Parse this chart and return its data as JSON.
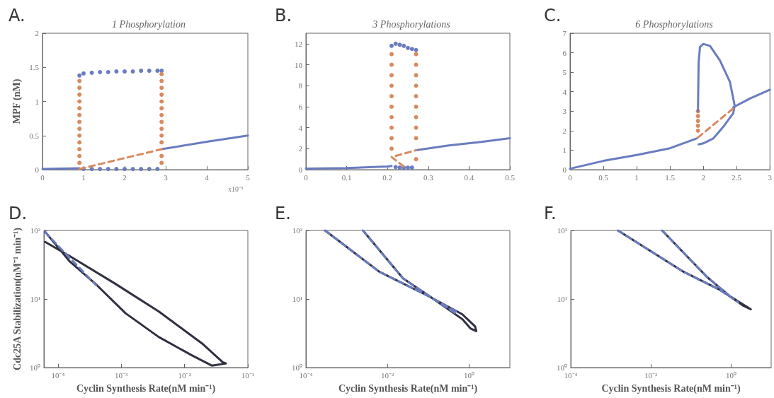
{
  "chart_data": [
    {
      "type": "line",
      "title": "1 Phosphorylation",
      "ylabel": "MPF (nM)",
      "annotations": [
        "A.",
        "x10⁻³"
      ],
      "xlim": [
        0,
        5
      ],
      "xticks": [
        0,
        1,
        2,
        3,
        4,
        5
      ],
      "ylim": [
        0,
        2
      ],
      "yticks": [
        0,
        0.5,
        1,
        1.5,
        2
      ],
      "series": [
        {
          "color": "#6a7cc0",
          "line_style": "solid",
          "x": [
            0,
            0.9,
            null,
            2.9,
            4,
            5
          ],
          "values": [
            0.01,
            0.02,
            null,
            0.3,
            0.41,
            0.5
          ]
        },
        {
          "color": "#d9895f",
          "line_style": "dashed",
          "x": [
            0.9,
            2.9
          ],
          "values": [
            0.01,
            0.3
          ]
        },
        {
          "type": "scatter",
          "marker": "circle",
          "color": "#6a7cc0",
          "x": [
            0.9,
            1.0,
            1.2,
            1.4,
            1.6,
            1.8,
            2.0,
            2.2,
            2.4,
            2.6,
            2.8,
            2.9,
            1.0,
            1.2,
            1.4,
            1.6,
            1.8,
            2.0,
            2.2,
            2.4,
            2.6,
            2.8
          ],
          "values": [
            1.38,
            1.41,
            1.42,
            1.43,
            1.43,
            1.44,
            1.44,
            1.44,
            1.45,
            1.45,
            1.45,
            1.45,
            0.01,
            0.01,
            0.01,
            0.01,
            0.01,
            0.01,
            0.01,
            0.01,
            0.01,
            0.01
          ]
        },
        {
          "type": "scatter",
          "marker": "circle",
          "color": "#d9895f",
          "x": [
            0.9,
            0.9,
            0.9,
            0.9,
            0.9,
            0.9,
            0.9,
            0.9,
            0.9,
            0.9,
            0.9,
            0.9,
            0.9,
            2.9,
            2.9,
            2.9,
            2.9,
            2.9,
            2.9,
            2.9,
            2.9,
            2.9,
            2.9,
            2.9,
            2.9,
            2.9
          ],
          "values": [
            0.1,
            0.2,
            0.3,
            0.4,
            0.5,
            0.6,
            0.7,
            0.8,
            0.9,
            1.0,
            1.1,
            1.2,
            1.3,
            0.1,
            0.2,
            0.4,
            0.5,
            0.6,
            0.7,
            0.8,
            0.9,
            1.0,
            1.1,
            1.2,
            1.3,
            1.4
          ]
        }
      ]
    },
    {
      "type": "line",
      "title": "3 Phosphorylations",
      "annotations": [
        "B."
      ],
      "xlim": [
        0,
        0.5
      ],
      "xticks": [
        0,
        0.1,
        0.2,
        0.3,
        0.4,
        0.5
      ],
      "ylim": [
        0,
        13
      ],
      "yticks": [
        0,
        2,
        4,
        6,
        8,
        10,
        12
      ],
      "series": [
        {
          "color": "#6a7cc0",
          "line_style": "solid",
          "x": [
            0,
            0.1,
            0.2,
            0.21,
            null,
            0.27,
            0.35,
            0.43,
            0.5
          ],
          "values": [
            0.1,
            0.15,
            0.3,
            0.35,
            null,
            1.85,
            2.3,
            2.65,
            3.0
          ]
        },
        {
          "color": "#d9895f",
          "line_style": "dashed",
          "x": [
            0.24,
            0.21,
            0.27
          ],
          "values": [
            0.3,
            1.2,
            1.85
          ]
        },
        {
          "type": "scatter",
          "marker": "circle",
          "color": "#6a7cc0",
          "x": [
            0.21,
            0.22,
            0.23,
            0.24,
            0.25,
            0.26,
            0.27,
            0.22,
            0.23,
            0.24,
            0.25,
            0.26
          ],
          "values": [
            11.8,
            12.0,
            11.9,
            11.8,
            11.6,
            11.5,
            11.4,
            0.25,
            0.2,
            0.2,
            0.2,
            0.2
          ]
        },
        {
          "type": "scatter",
          "marker": "circle",
          "color": "#d9895f",
          "x": [
            0.21,
            0.21,
            0.21,
            0.21,
            0.21,
            0.21,
            0.21,
            0.21,
            0.21,
            0.21,
            0.27,
            0.27,
            0.27,
            0.27,
            0.27,
            0.27,
            0.27,
            0.27,
            0.27,
            0.27
          ],
          "values": [
            2,
            3,
            4,
            5,
            6,
            7,
            8,
            9,
            10,
            11,
            1,
            3,
            4,
            5,
            6,
            7,
            8,
            9,
            10,
            11
          ]
        }
      ]
    },
    {
      "type": "line",
      "title": "6 Phosphorylations",
      "annotations": [
        "C."
      ],
      "xlim": [
        0,
        3
      ],
      "xticks": [
        0,
        0.5,
        1,
        1.5,
        2,
        2.5,
        3
      ],
      "ylim": [
        0,
        7
      ],
      "yticks": [
        0,
        1,
        2,
        3,
        4,
        5,
        6,
        7
      ],
      "series": [
        {
          "color": "#6a7cc0",
          "line_style": "solid",
          "x": [
            0,
            0.5,
            1,
            1.5,
            1.9,
            null,
            2.45,
            2.7,
            3
          ],
          "values": [
            0.05,
            0.45,
            0.75,
            1.1,
            1.6,
            null,
            3.2,
            3.65,
            4.1
          ]
        },
        {
          "color": "#6a7cc0",
          "line_style": "solid",
          "x": [
            1.92,
            1.93,
            1.95,
            2.0,
            2.1,
            2.25,
            2.4,
            2.47,
            2.45,
            2.3,
            2.15,
            2.0,
            1.93
          ],
          "values": [
            3.0,
            5.5,
            6.3,
            6.45,
            6.35,
            5.6,
            4.5,
            3.3,
            2.9,
            2.2,
            1.6,
            1.35,
            1.3
          ]
        },
        {
          "color": "#d9895f",
          "line_style": "dashed",
          "x": [
            1.92,
            2.47
          ],
          "values": [
            1.65,
            3.2
          ]
        },
        {
          "type": "scatter",
          "marker": "circle",
          "color": "#d9895f",
          "x": [
            1.92,
            1.92,
            1.92,
            1.92,
            1.92
          ],
          "values": [
            2.0,
            2.25,
            2.5,
            2.75,
            3.0
          ]
        }
      ]
    },
    {
      "type": "line",
      "xlabel": "Cyclin Synthesis Rate(nM min⁻¹)",
      "ylabel": "Cdc25A Stabilization(nM⁻¹ min⁻¹)",
      "annotations": [
        "D."
      ],
      "log": "xy",
      "xlim": [
        6e-05,
        0.1
      ],
      "xticks": [
        {
          "value": 0.0001,
          "label": "10⁻⁴"
        },
        {
          "value": 0.001,
          "label": "10⁻³"
        },
        {
          "value": 0.01,
          "label": "10⁻²"
        },
        {
          "value": 0.1,
          "label": "10⁻¹"
        }
      ],
      "ylim": [
        1,
        100
      ],
      "yticks": [
        {
          "value": 1,
          "label": "10⁰"
        },
        {
          "value": 10,
          "label": "10¹"
        },
        {
          "value": 100,
          "label": "10²"
        }
      ],
      "series": [
        {
          "color": "#2f3040",
          "line_style": "solid",
          "x": [
            6.3e-05,
            0.000155,
            0.00078,
            0.0039,
            0.0195,
            0.04,
            0.045,
            0.027,
            0.0132,
            0.0039,
            0.00117,
            0.00041,
            0.000155,
            6.3e-05
          ],
          "values": [
            68,
            42,
            17,
            6.6,
            2.2,
            1.2,
            1.15,
            1.07,
            1.5,
            2.8,
            6.2,
            16,
            35,
            95
          ]
        },
        {
          "color": "#6a7cc0",
          "line_style": "dashed",
          "x": [
            6.3e-05,
            0.0001,
            0.00025,
            0.0004
          ],
          "values": [
            95,
            60,
            25,
            16
          ]
        }
      ]
    },
    {
      "type": "line",
      "xlabel": "Cyclin Synthesis Rate(nM min⁻¹)",
      "annotations": [
        "E."
      ],
      "log": "xy",
      "xlim": [
        0.0001,
        10
      ],
      "xticks": [
        {
          "value": 0.0001,
          "label": "10⁻⁴"
        },
        {
          "value": 0.01,
          "label": "10⁻²"
        },
        {
          "value": 1,
          "label": "10⁰"
        }
      ],
      "ylim": [
        1,
        100
      ],
      "yticks": [
        {
          "value": 1,
          "label": "10⁰"
        },
        {
          "value": 10,
          "label": "10¹"
        },
        {
          "value": 100,
          "label": "10²"
        }
      ],
      "series": [
        {
          "color": "#2f3040",
          "line_style": "solid",
          "x": [
            0.000295,
            0.0063,
            0.091,
            0.68,
            1.4,
            1.5,
            1.1,
            0.68,
            0.12,
            0.024,
            0.0025
          ],
          "values": [
            100,
            25,
            11.4,
            6.0,
            4.0,
            3.4,
            3.7,
            5.1,
            10.5,
            20,
            100
          ]
        },
        {
          "color": "#6a7cc0",
          "line_style": "dashed",
          "x": [
            0.000295,
            0.0063,
            0.091,
            0.5,
            null,
            0.0025,
            0.024,
            0.12,
            0.5
          ],
          "values": [
            100,
            25,
            11.4,
            6.5,
            null,
            100,
            20,
            10.5,
            6.0
          ]
        }
      ]
    },
    {
      "type": "line",
      "xlabel": "Cyclin Synthesis Rate(nM min⁻¹)",
      "annotations": [
        "F."
      ],
      "log": "xy",
      "xlim": [
        0.0001,
        10
      ],
      "xticks": [
        {
          "value": 0.0001,
          "label": "10⁻⁴"
        },
        {
          "value": 0.01,
          "label": "10⁻²"
        },
        {
          "value": 1,
          "label": "10⁰"
        }
      ],
      "ylim": [
        1,
        100
      ],
      "yticks": [
        {
          "value": 1,
          "label": "10⁰"
        },
        {
          "value": 10,
          "label": "10¹"
        },
        {
          "value": 100,
          "label": "10²"
        }
      ],
      "series": [
        {
          "color": "#2f3040",
          "line_style": "solid",
          "x": [
            0.0015,
            0.065,
            0.48,
            3.1,
            2.0,
            0.93,
            0.25,
            0.019
          ],
          "values": [
            100,
            25,
            14,
            7.1,
            8.0,
            11,
            21,
            100
          ]
        },
        {
          "color": "#6a7cc0",
          "line_style": "dashed",
          "x": [
            0.0015,
            0.065,
            0.48,
            1.5,
            null,
            0.019,
            0.25,
            0.93
          ],
          "values": [
            100,
            25,
            14,
            9,
            null,
            100,
            21,
            11
          ]
        }
      ]
    }
  ]
}
